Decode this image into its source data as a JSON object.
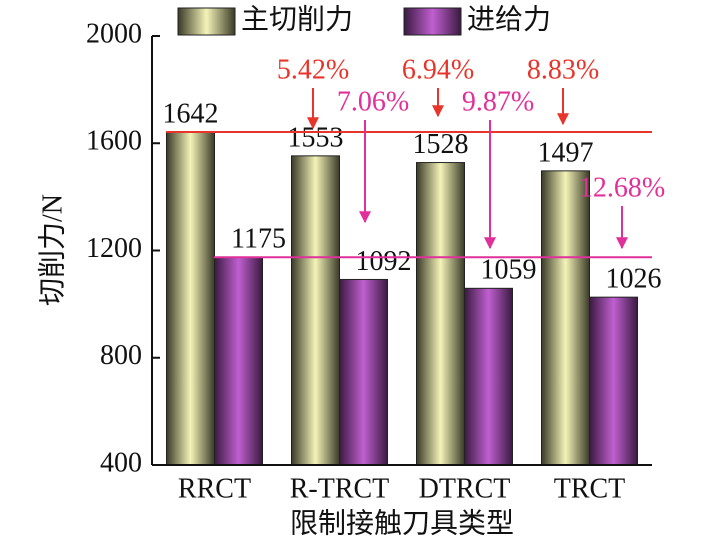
{
  "chart_data": {
    "type": "bar",
    "x_label": "限制接触刀具类型",
    "y_label": "切削力/N",
    "categories": [
      "RRCT",
      "R-TRCT",
      "DTRCT",
      "TRCT"
    ],
    "series": [
      {
        "name": "主切削力",
        "color": "#f4f4b8",
        "values": [
          1642,
          1553,
          1528,
          1497
        ]
      },
      {
        "name": "进给力",
        "color": "#c060d0",
        "values": [
          1175,
          1092,
          1059,
          1026
        ]
      }
    ],
    "ylim": [
      400,
      2000
    ],
    "yticks": [
      400,
      800,
      1200,
      1600,
      2000
    ],
    "annotations": [
      {
        "text": "5.42%",
        "color": "#e8352b"
      },
      {
        "text": "6.94%",
        "color": "#e8352b"
      },
      {
        "text": "8.83%",
        "color": "#e8352b"
      },
      {
        "text": "7.06%",
        "color": "#e0309a"
      },
      {
        "text": "9.87%",
        "color": "#e0309a"
      },
      {
        "text": "12.68%",
        "color": "#e0309a"
      }
    ],
    "legend": "top"
  }
}
